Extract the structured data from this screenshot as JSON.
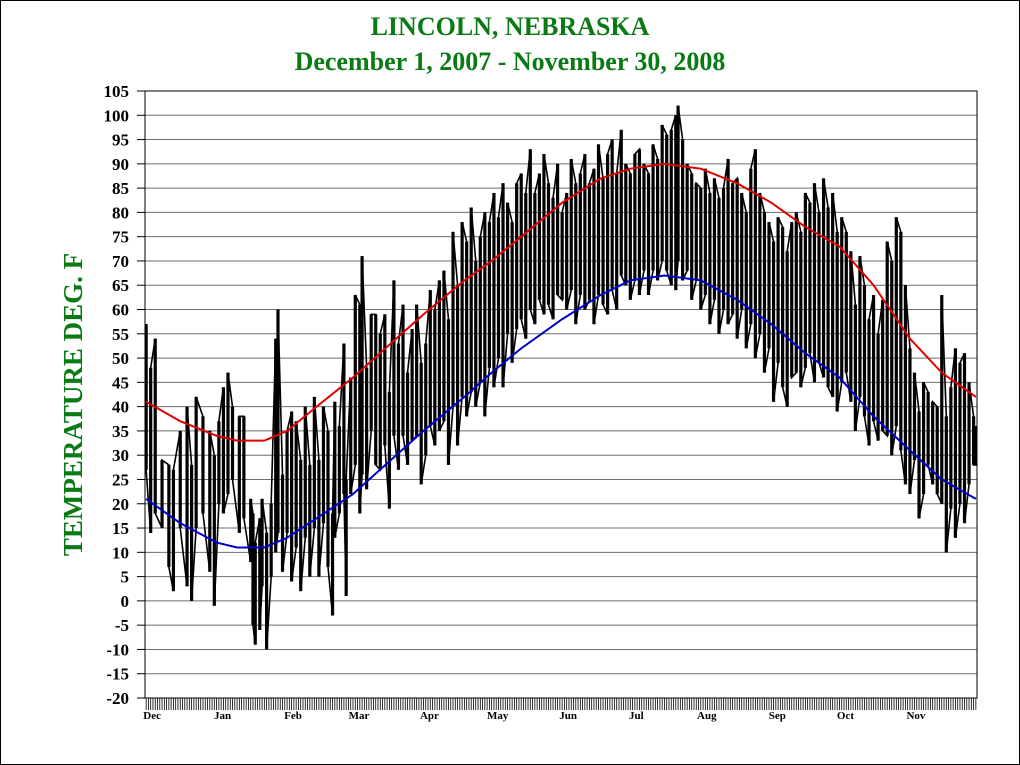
{
  "chart_data": {
    "type": "line",
    "title": "LINCOLN, NEBRASKA",
    "subtitle": "December 1, 2007 - November 30,  2008",
    "ylabel": "TEMPERATURE DEG. F",
    "xlabel": "",
    "ylim": [
      -20,
      105
    ],
    "yticks": [
      105,
      100,
      95,
      90,
      85,
      80,
      75,
      70,
      65,
      60,
      55,
      50,
      45,
      40,
      35,
      30,
      25,
      20,
      15,
      10,
      5,
      0,
      -5,
      -10,
      -15,
      -20
    ],
    "days": 366,
    "months": [
      "Dec",
      "Jan",
      "Feb",
      "Mar",
      "Apr",
      "May",
      "Jun",
      "Jul",
      "Aug",
      "Sep",
      "Oct",
      "Nov"
    ],
    "month_start_day": [
      0,
      31,
      62,
      91,
      122,
      152,
      183,
      213,
      244,
      275,
      305,
      336
    ],
    "grid": true,
    "series": [
      {
        "role": "normal-high",
        "color": "#e00000",
        "points": [
          [
            0,
            41
          ],
          [
            15,
            37
          ],
          [
            31,
            34
          ],
          [
            40,
            33
          ],
          [
            52,
            33
          ],
          [
            62,
            35
          ],
          [
            75,
            40
          ],
          [
            91,
            46
          ],
          [
            110,
            54
          ],
          [
            122,
            59
          ],
          [
            140,
            66
          ],
          [
            152,
            70
          ],
          [
            165,
            75
          ],
          [
            183,
            82
          ],
          [
            200,
            87
          ],
          [
            213,
            89
          ],
          [
            228,
            90
          ],
          [
            244,
            89
          ],
          [
            260,
            86
          ],
          [
            275,
            82
          ],
          [
            290,
            77
          ],
          [
            305,
            73
          ],
          [
            320,
            65
          ],
          [
            336,
            54
          ],
          [
            350,
            47
          ],
          [
            365,
            42
          ]
        ]
      },
      {
        "role": "normal-low",
        "color": "#0000cc",
        "points": [
          [
            0,
            21
          ],
          [
            15,
            16
          ],
          [
            31,
            12
          ],
          [
            40,
            11
          ],
          [
            52,
            11
          ],
          [
            62,
            13
          ],
          [
            75,
            17
          ],
          [
            91,
            22
          ],
          [
            110,
            30
          ],
          [
            122,
            35
          ],
          [
            140,
            42
          ],
          [
            152,
            47
          ],
          [
            165,
            52
          ],
          [
            183,
            58
          ],
          [
            200,
            63
          ],
          [
            213,
            66
          ],
          [
            228,
            67
          ],
          [
            244,
            66
          ],
          [
            260,
            62
          ],
          [
            275,
            57
          ],
          [
            290,
            51
          ],
          [
            305,
            46
          ],
          [
            320,
            38
          ],
          [
            336,
            31
          ],
          [
            350,
            25
          ],
          [
            365,
            21
          ]
        ]
      },
      {
        "role": "daily-observed",
        "color": "#000000",
        "ranges": [
          [
            0,
            27,
            57
          ],
          [
            2,
            14,
            48
          ],
          [
            4,
            18,
            54
          ],
          [
            7,
            15,
            29
          ],
          [
            10,
            7,
            28
          ],
          [
            12,
            2,
            27
          ],
          [
            15,
            15,
            35
          ],
          [
            18,
            3,
            40
          ],
          [
            20,
            0,
            28
          ],
          [
            22,
            15,
            42
          ],
          [
            25,
            18,
            38
          ],
          [
            28,
            6,
            35
          ],
          [
            30,
            -1,
            30
          ],
          [
            32,
            20,
            37
          ],
          [
            34,
            18,
            44
          ],
          [
            36,
            22,
            47
          ],
          [
            38,
            25,
            40
          ],
          [
            41,
            14,
            38
          ],
          [
            43,
            17,
            38
          ],
          [
            46,
            8,
            21
          ],
          [
            47,
            -5,
            18
          ],
          [
            48,
            -9,
            12
          ],
          [
            50,
            -6,
            17
          ],
          [
            51,
            3,
            21
          ],
          [
            53,
            -10,
            14
          ],
          [
            55,
            5,
            20
          ],
          [
            57,
            10,
            54
          ],
          [
            58,
            14,
            60
          ],
          [
            60,
            6,
            26
          ],
          [
            62,
            14,
            35
          ],
          [
            64,
            4,
            39
          ],
          [
            66,
            11,
            37
          ],
          [
            68,
            2,
            29
          ],
          [
            70,
            13,
            40
          ],
          [
            72,
            5,
            28
          ],
          [
            74,
            15,
            42
          ],
          [
            76,
            5,
            29
          ],
          [
            78,
            16,
            40
          ],
          [
            80,
            7,
            35
          ],
          [
            82,
            -3,
            18
          ],
          [
            83,
            13,
            41
          ],
          [
            85,
            18,
            36
          ],
          [
            87,
            22,
            53
          ],
          [
            88,
            1,
            25
          ],
          [
            90,
            22,
            46
          ],
          [
            92,
            28,
            63
          ],
          [
            94,
            18,
            61
          ],
          [
            95,
            26,
            71
          ],
          [
            97,
            23,
            48
          ],
          [
            99,
            35,
            59
          ],
          [
            101,
            28,
            59
          ],
          [
            103,
            27,
            55
          ],
          [
            105,
            32,
            59
          ],
          [
            107,
            19,
            43
          ],
          [
            109,
            34,
            66
          ],
          [
            111,
            27,
            53
          ],
          [
            113,
            34,
            61
          ],
          [
            115,
            28,
            47
          ],
          [
            117,
            33,
            56
          ],
          [
            119,
            34,
            61
          ],
          [
            121,
            24,
            49
          ],
          [
            123,
            30,
            53
          ],
          [
            125,
            36,
            64
          ],
          [
            127,
            32,
            60
          ],
          [
            129,
            35,
            66
          ],
          [
            131,
            37,
            68
          ],
          [
            133,
            28,
            58
          ],
          [
            135,
            40,
            76
          ],
          [
            137,
            32,
            65
          ],
          [
            139,
            42,
            78
          ],
          [
            141,
            38,
            74
          ],
          [
            143,
            43,
            81
          ],
          [
            145,
            40,
            70
          ],
          [
            147,
            45,
            75
          ],
          [
            149,
            38,
            80
          ],
          [
            151,
            48,
            78
          ],
          [
            153,
            44,
            84
          ],
          [
            155,
            50,
            79
          ],
          [
            157,
            44,
            86
          ],
          [
            159,
            55,
            82
          ],
          [
            161,
            49,
            78
          ],
          [
            163,
            56,
            86
          ],
          [
            165,
            58,
            88
          ],
          [
            167,
            54,
            84
          ],
          [
            169,
            60,
            93
          ],
          [
            171,
            57,
            84
          ],
          [
            173,
            62,
            88
          ],
          [
            175,
            59,
            92
          ],
          [
            177,
            61,
            86
          ],
          [
            179,
            58,
            83
          ],
          [
            181,
            63,
            90
          ],
          [
            183,
            62,
            80
          ],
          [
            185,
            60,
            84
          ],
          [
            187,
            64,
            91
          ],
          [
            189,
            57,
            86
          ],
          [
            191,
            63,
            88
          ],
          [
            193,
            60,
            92
          ],
          [
            195,
            62,
            86
          ],
          [
            197,
            57,
            89
          ],
          [
            199,
            63,
            94
          ],
          [
            201,
            61,
            87
          ],
          [
            203,
            59,
            92
          ],
          [
            205,
            64,
            95
          ],
          [
            207,
            60,
            88
          ],
          [
            209,
            67,
            97
          ],
          [
            211,
            65,
            90
          ],
          [
            213,
            62,
            88
          ],
          [
            215,
            66,
            92
          ],
          [
            217,
            63,
            93
          ],
          [
            219,
            68,
            90
          ],
          [
            221,
            63,
            88
          ],
          [
            223,
            68,
            94
          ],
          [
            225,
            66,
            91
          ],
          [
            227,
            70,
            98
          ],
          [
            229,
            68,
            96
          ],
          [
            231,
            65,
            97
          ],
          [
            233,
            64,
            100
          ],
          [
            234,
            70,
            102
          ],
          [
            236,
            66,
            95
          ],
          [
            238,
            68,
            90
          ],
          [
            240,
            62,
            88
          ],
          [
            242,
            66,
            86
          ],
          [
            244,
            60,
            85
          ],
          [
            246,
            63,
            89
          ],
          [
            248,
            57,
            84
          ],
          [
            250,
            62,
            87
          ],
          [
            252,
            55,
            83
          ],
          [
            254,
            60,
            85
          ],
          [
            256,
            57,
            91
          ],
          [
            258,
            59,
            86
          ],
          [
            260,
            54,
            87
          ],
          [
            262,
            60,
            84
          ],
          [
            264,
            52,
            80
          ],
          [
            266,
            57,
            89
          ],
          [
            268,
            50,
            93
          ],
          [
            270,
            55,
            84
          ],
          [
            272,
            47,
            80
          ],
          [
            274,
            52,
            78
          ],
          [
            276,
            41,
            74
          ],
          [
            278,
            49,
            79
          ],
          [
            280,
            44,
            77
          ],
          [
            282,
            40,
            72
          ],
          [
            284,
            46,
            78
          ],
          [
            286,
            47,
            80
          ],
          [
            288,
            44,
            76
          ],
          [
            290,
            48,
            84
          ],
          [
            292,
            51,
            82
          ],
          [
            294,
            45,
            86
          ],
          [
            296,
            49,
            80
          ],
          [
            298,
            46,
            87
          ],
          [
            300,
            44,
            81
          ],
          [
            302,
            42,
            84
          ],
          [
            304,
            39,
            76
          ],
          [
            306,
            45,
            79
          ],
          [
            308,
            47,
            76
          ],
          [
            310,
            41,
            72
          ],
          [
            312,
            35,
            61
          ],
          [
            314,
            42,
            71
          ],
          [
            316,
            38,
            65
          ],
          [
            318,
            32,
            58
          ],
          [
            320,
            37,
            63
          ],
          [
            322,
            33,
            55
          ],
          [
            324,
            35,
            62
          ],
          [
            326,
            34,
            74
          ],
          [
            328,
            30,
            70
          ],
          [
            330,
            36,
            79
          ],
          [
            332,
            31,
            76
          ],
          [
            334,
            24,
            65
          ],
          [
            336,
            22,
            52
          ],
          [
            338,
            29,
            47
          ],
          [
            340,
            17,
            39
          ],
          [
            342,
            22,
            45
          ],
          [
            344,
            28,
            43
          ],
          [
            346,
            24,
            41
          ],
          [
            348,
            22,
            40
          ],
          [
            350,
            20,
            63
          ],
          [
            352,
            10,
            38
          ],
          [
            354,
            19,
            44
          ],
          [
            356,
            13,
            52
          ],
          [
            358,
            20,
            49
          ],
          [
            360,
            16,
            51
          ],
          [
            362,
            24,
            45
          ],
          [
            364,
            28,
            38
          ],
          [
            365,
            28,
            36
          ]
        ]
      }
    ]
  },
  "colors": {
    "title": "#0a7a14",
    "normal_high": "#e00000",
    "normal_low": "#0000cc",
    "observed": "#000000",
    "grid": "#6e6e6e"
  }
}
